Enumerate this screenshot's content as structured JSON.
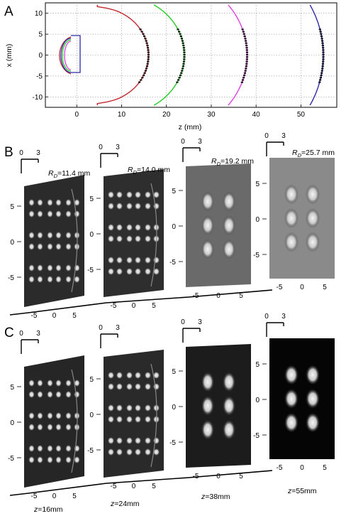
{
  "panels": {
    "A": {
      "letter": "A",
      "xlabel": "z (mm)",
      "ylabel": "x (mm)",
      "xticks": [
        "0",
        "10",
        "20",
        "30",
        "40",
        "50"
      ],
      "yticks": [
        "10",
        "5",
        "0",
        "-5",
        "-10"
      ]
    },
    "B": {
      "letter": "B",
      "labels": [
        {
          "prefix": "R",
          "sub": "D",
          "value": "=11.4 mm"
        },
        {
          "prefix": "R",
          "sub": "D",
          "value": "=14.0 mm"
        },
        {
          "prefix": "R",
          "sub": "D",
          "value": "=19.2 mm"
        },
        {
          "prefix": "R",
          "sub": "D",
          "value": "=25.7 mm"
        }
      ]
    },
    "C": {
      "letter": "C",
      "labels": [
        "z=16mm",
        "z=24mm",
        "z=38mm",
        "z=55mm"
      ]
    },
    "scale_ticks": [
      "0",
      "3"
    ],
    "image_yticks": [
      "5",
      "0",
      "-5"
    ],
    "image_xticks": [
      "-5",
      "0",
      "5"
    ]
  },
  "chart_data": {
    "type": "line",
    "xlabel": "z (mm)",
    "ylabel": "x (mm)",
    "xlim": [
      -7,
      58
    ],
    "ylim": [
      -12.5,
      12.5
    ],
    "grid": true,
    "series": [
      {
        "color": "#c1272d",
        "apex_z": 16,
        "radius": 11.4
      },
      {
        "color": "#22cc22",
        "apex_z": 24,
        "radius": 14.0
      },
      {
        "color": "#e040e0",
        "apex_z": 38,
        "radius": 19.2
      },
      {
        "color": "#2a2aa8",
        "apex_z": 55,
        "radius": 25.7
      }
    ]
  }
}
